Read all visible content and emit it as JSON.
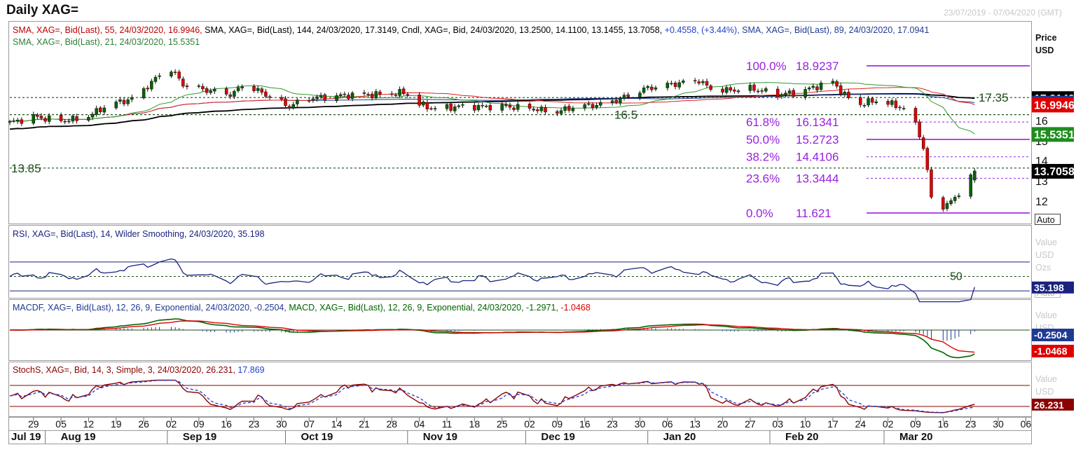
{
  "title": "Daily XAG=",
  "date_range": "23/07/2019 - 07/04/2020 (GMT)",
  "colors": {
    "up": "#006400",
    "down": "#e00000",
    "fib": "#9a20e0",
    "sma144": "#000000",
    "sma89": "#1f3a93",
    "sma55": "#e02020",
    "sma21": "#2e9a2e",
    "rsi": "#1a237e",
    "stoch_k": "#8b0000",
    "stoch_d": "#1f3fd0",
    "macd": "#006400",
    "signal": "#e00000"
  },
  "price_panel": {
    "legend_line1": [
      {
        "text": "SMA, XAG=, Bid(Last),  55, 24/03/2020, 16.9946, ",
        "color": "#c00000"
      },
      {
        "text": "SMA, XAG=, Bid(Last),  144, 24/03/2020, 17.3149, ",
        "color": "#000000"
      },
      {
        "text": "Cndl, XAG=, Bid, 24/03/2020, 13.2500, 14.1100, 13.1455, 13.7058, ",
        "color": "#000000"
      },
      {
        "text": "+0.4558, (+3.44%), ",
        "color": "#1f3fd0"
      },
      {
        "text": "SMA, XAG=, Bid(Last),  89, 24/03/2020, 17.0941",
        "color": "#1f3a93"
      }
    ],
    "legend_line2": "SMA, XAG=, Bid(Last),  21, 24/03/2020, 15.5351",
    "axis_header": [
      "Price",
      "USD"
    ],
    "ticks": [
      "17",
      "16",
      "15",
      "14",
      "13",
      "12"
    ],
    "auto_label": "Auto",
    "levels": [
      {
        "label": "17.35",
        "value": 17.35
      },
      {
        "label": "16.5",
        "value": 16.5
      },
      {
        "label": "13.85",
        "value": 13.85
      }
    ],
    "fib": [
      {
        "pct": "100.0%",
        "value": "18.9237"
      },
      {
        "pct": "61.8%",
        "value": "16.1341"
      },
      {
        "pct": "50.0%",
        "value": "15.2723"
      },
      {
        "pct": "38.2%",
        "value": "14.4106"
      },
      {
        "pct": "23.6%",
        "value": "13.3444"
      },
      {
        "pct": "0.0%",
        "value": "11.621"
      }
    ],
    "tags": [
      {
        "text": "17.3149",
        "bg": "#000000"
      },
      {
        "text": "17.0941",
        "bg": "#1f3a93"
      },
      {
        "text": "16.9946",
        "bg": "#e00000"
      },
      {
        "text": "15.5351",
        "bg": "#1e8c1e"
      },
      {
        "text": "13.7058",
        "bg": "#000000"
      }
    ]
  },
  "rsi_panel": {
    "legend": "RSI, XAG=, Bid(Last),  14, Wilder Smoothing, 24/03/2020, 35.198",
    "axis_header": [
      "Value",
      "USD",
      "Ozs"
    ],
    "level_label": "50",
    "tag": "35.198",
    "auto_label": "Auto"
  },
  "macd_panel": {
    "legend_a": "MACDF, XAG=, Bid(Last),  12, 26, 9, Exponential, 24/03/2020, -0.2504, ",
    "legend_b": "MACD, XAG=, Bid(Last),  12, 26, 9, Exponential, 24/03/2020, -1.2971, ",
    "legend_c": "-1.0468",
    "axis_header": [
      "Value",
      "USD"
    ],
    "tags": [
      {
        "text": "-0.2504",
        "bg": "#1f3a93"
      },
      {
        "text": "-1.0468",
        "bg": "#e00000"
      }
    ]
  },
  "stoch_panel": {
    "legend_a": "StochS, XAG=, Bid,  14, 3, Simple, 3, 24/03/2020, 26.231, ",
    "legend_b": "17.869",
    "axis_header": [
      "Value",
      "USD"
    ],
    "tag": "26.231"
  },
  "x_axis": {
    "day_ticks": [
      "29",
      "05",
      "12",
      "19",
      "26",
      "02",
      "09",
      "16",
      "23",
      "30",
      "07",
      "14",
      "21",
      "28",
      "04",
      "11",
      "18",
      "25",
      "02",
      "09",
      "16",
      "23",
      "30",
      "06",
      "13",
      "20",
      "27",
      "03",
      "10",
      "17",
      "24",
      "02",
      "09",
      "16",
      "23",
      "30",
      "06"
    ],
    "months": [
      "Jul 19",
      "Aug 19",
      "Sep 19",
      "Oct 19",
      "Nov 19",
      "Dec 19",
      "Jan 20",
      "Feb 20",
      "Mar 20"
    ]
  },
  "chart_data": [
    {
      "type": "candlestick",
      "title": "Daily XAG=",
      "ylabel": "Price USD",
      "ylim": [
        11.3,
        19.0
      ],
      "x_range": [
        "2019-07-23",
        "2020-04-07"
      ],
      "last_candle": {
        "date": "2020-03-24",
        "open": 13.25,
        "high": 14.11,
        "low": 13.1455,
        "close": 13.7058,
        "change": 0.4558,
        "change_pct": 3.44
      },
      "approx_close_path": {
        "months": [
          "Jul 19",
          "Aug 19",
          "Sep 19",
          "Oct 19",
          "Nov 19",
          "Dec 19",
          "Jan 20",
          "Feb 20",
          "Mar 20"
        ],
        "values": [
          16.4,
          17.1,
          17.6,
          17.4,
          17.0,
          16.9,
          17.9,
          17.8,
          12.5
        ]
      },
      "series": [
        {
          "name": "SMA 144",
          "last": 17.3149
        },
        {
          "name": "SMA 89",
          "last": 17.0941
        },
        {
          "name": "SMA 55",
          "last": 16.9946
        },
        {
          "name": "SMA 21",
          "last": 15.5351
        }
      ],
      "horizontal_levels": [
        17.35,
        16.5,
        13.85
      ],
      "fibonacci": [
        {
          "level": "100.0%",
          "value": 18.9237
        },
        {
          "level": "61.8%",
          "value": 16.1341
        },
        {
          "level": "50.0%",
          "value": 15.2723
        },
        {
          "level": "38.2%",
          "value": 14.4106
        },
        {
          "level": "23.6%",
          "value": 13.3444
        },
        {
          "level": "0.0%",
          "value": 11.621
        }
      ]
    },
    {
      "type": "line",
      "title": "RSI, XAG=, Bid(Last),  14, Wilder Smoothing",
      "ylim": [
        0,
        100
      ],
      "levels": [
        30,
        50,
        70
      ],
      "series": [
        {
          "name": "RSI",
          "last": 35.198
        }
      ]
    },
    {
      "type": "line",
      "title": "MACD, XAG=, Bid(Last),  12, 26, 9, Exponential",
      "series": [
        {
          "name": "MACDF",
          "last": -0.2504
        },
        {
          "name": "MACD",
          "last": -1.2971
        },
        {
          "name": "Signal",
          "last": -1.0468
        }
      ]
    },
    {
      "type": "line",
      "title": "StochS, XAG=, Bid,  14, 3, Simple, 3",
      "ylim": [
        0,
        100
      ],
      "levels": [
        20,
        80
      ],
      "series": [
        {
          "name": "%K",
          "last": 26.231
        },
        {
          "name": "%D",
          "last": 17.869
        }
      ]
    }
  ]
}
